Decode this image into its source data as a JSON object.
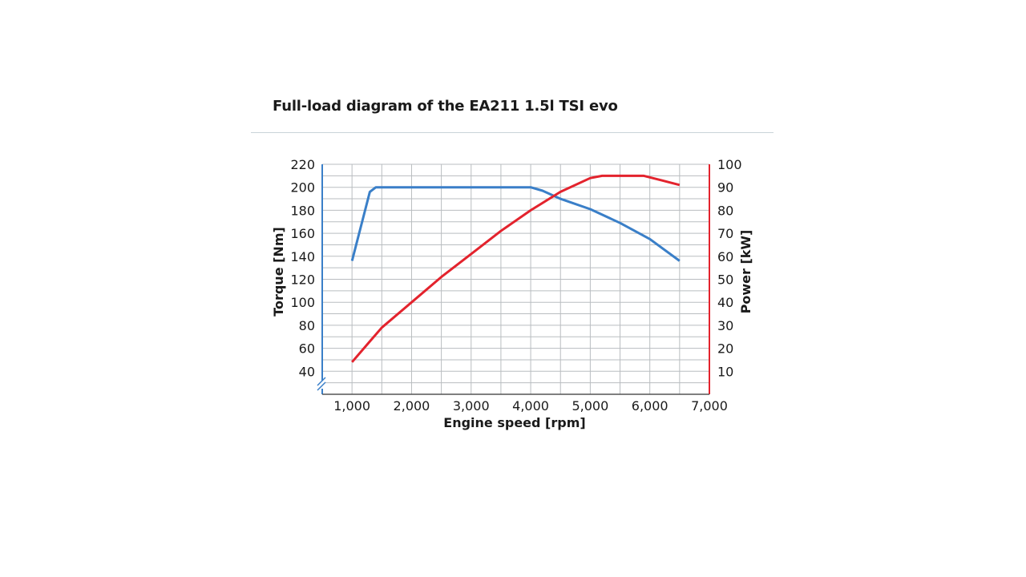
{
  "chart_data": {
    "type": "line",
    "title": "Full-load diagram of the EA211 1.5l TSI evo",
    "xlabel": "Engine speed [rpm]",
    "ylabel_left": "Torque [Nm]",
    "ylabel_right": "Power [kW]",
    "xlim": [
      500,
      7000
    ],
    "ylim_left": [
      20,
      220
    ],
    "ylim_right": [
      0,
      100
    ],
    "x_ticks": [
      "1,000",
      "2,000",
      "3,000",
      "4,000",
      "5,000",
      "6,000",
      "7,000"
    ],
    "y_left_ticks": [
      "40",
      "60",
      "80",
      "100",
      "120",
      "140",
      "160",
      "180",
      "200",
      "220"
    ],
    "y_right_ticks": [
      "10",
      "20",
      "30",
      "40",
      "50",
      "60",
      "70",
      "80",
      "90",
      "100"
    ],
    "grid": true,
    "axis_break_left": true,
    "series": [
      {
        "name": "Torque",
        "axis": "left",
        "color": "#3a7fc8",
        "x": [
          1000,
          1300,
          1400,
          1500,
          2000,
          3000,
          4000,
          4200,
          4500,
          5000,
          5500,
          6000,
          6500
        ],
        "y": [
          136,
          196,
          200,
          200,
          200,
          200,
          200,
          197,
          190,
          181,
          169,
          155,
          136
        ]
      },
      {
        "name": "Power",
        "axis": "right",
        "color": "#e3232d",
        "x": [
          1000,
          1300,
          1500,
          2000,
          2500,
          3000,
          3500,
          4000,
          4500,
          5000,
          5200,
          5500,
          5900,
          6200,
          6500
        ],
        "y": [
          14,
          23,
          29,
          40,
          51,
          61,
          71,
          80,
          88,
          94,
          95,
          95,
          95,
          93,
          91
        ]
      }
    ]
  }
}
